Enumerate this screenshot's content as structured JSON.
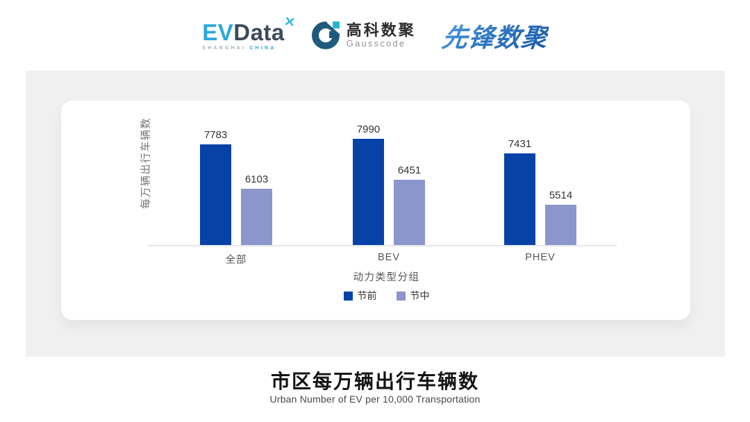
{
  "header": {
    "evdata": {
      "ev": "EV",
      "data": "Data",
      "spark": "✕",
      "sub_left": "SHANGHAI",
      "sub_right": "CHINA"
    },
    "gausscode": {
      "name_cn": "高科数聚",
      "name_en": "Gausscode"
    },
    "pioneer": {
      "name": "先锋数聚"
    }
  },
  "chart_data": {
    "type": "bar",
    "categories": [
      "全部",
      "BEV",
      "PHEV"
    ],
    "series": [
      {
        "name": "节前",
        "color": "#0742A6",
        "values": [
          7783,
          7990,
          7431
        ]
      },
      {
        "name": "节中",
        "color": "#8B96CD",
        "values": [
          6103,
          6451,
          5514
        ]
      }
    ],
    "xlabel": "动力类型分组",
    "ylabel": "每万辆出行车辆数",
    "ylim": [
      4000,
      8200
    ],
    "grid": false,
    "legend_position": "bottom",
    "bar_value_labels": true
  },
  "footer": {
    "title": "市区每万辆出行车辆数",
    "subtitle": "Urban Number of EV per 10,000 Transportation"
  }
}
